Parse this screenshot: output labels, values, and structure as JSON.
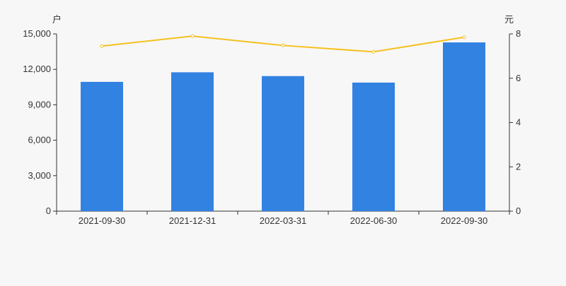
{
  "chart_data": {
    "type": "bar+line",
    "categories": [
      "2021-09-30",
      "2021-12-31",
      "2022-03-31",
      "2022-06-30",
      "2022-09-30"
    ],
    "series": [
      {
        "type": "bar",
        "axis": "left",
        "color": "#3282e2",
        "values": [
          10940,
          11750,
          11430,
          10880,
          14280
        ]
      },
      {
        "type": "line",
        "axis": "right",
        "color": "#f5c11f",
        "values": [
          7.45,
          7.9,
          7.48,
          7.19,
          7.85
        ]
      }
    ],
    "left_axis": {
      "unit_label": "户",
      "ylim": [
        0,
        15000
      ],
      "ticks": [
        0,
        3000,
        6000,
        9000,
        12000,
        15000
      ],
      "tick_labels": [
        "0",
        "3,000",
        "6,000",
        "9,000",
        "12,000",
        "15,000"
      ]
    },
    "right_axis": {
      "unit_label": "元",
      "ylim": [
        0,
        8
      ],
      "ticks": [
        0,
        2,
        4,
        6,
        8
      ],
      "tick_labels": [
        "0",
        "2",
        "4",
        "6",
        "8"
      ]
    },
    "grid": false
  }
}
